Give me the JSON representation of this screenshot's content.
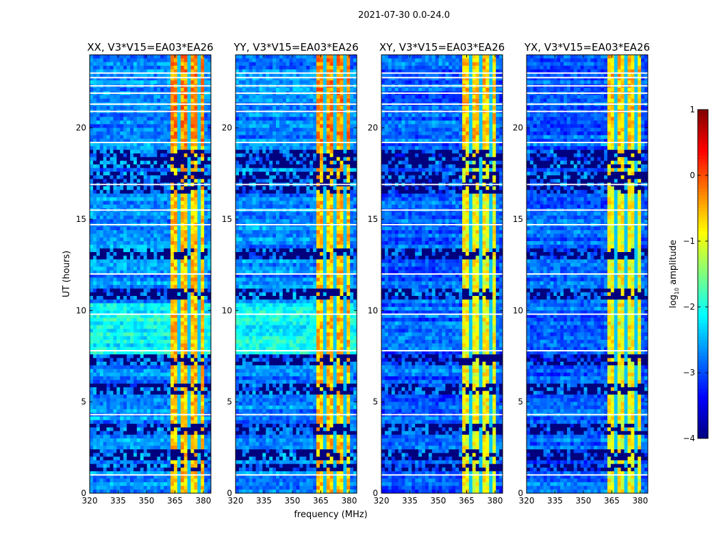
{
  "chart_data": {
    "type": "heatmap",
    "title": "2021-07-30 0.0-24.0",
    "xlabel": "frequency (MHz)",
    "ylabel": "UT (hours)",
    "xlim": [
      320,
      384
    ],
    "ylim": [
      0,
      24
    ],
    "xticks": [
      320,
      335,
      350,
      365,
      380
    ],
    "yticks": [
      0,
      5,
      10,
      15,
      20
    ],
    "panels": [
      {
        "title": "XX, V3*V15=EA03*EA26",
        "base_log_amp": -2.7,
        "band_log_amp": -0.6
      },
      {
        "title": "YY, V3*V15=EA03*EA26",
        "base_log_amp": -2.7,
        "band_log_amp": -0.6
      },
      {
        "title": "XY, V3*V15=EA03*EA26",
        "base_log_amp": -2.9,
        "band_log_amp": -0.9
      },
      {
        "title": "YX, V3*V15=EA03*EA26",
        "base_log_amp": -2.9,
        "band_log_amp": -0.9
      }
    ],
    "rfi_band_mhz": [
      363.5,
      380.5
    ],
    "band_gaps_mhz": [
      367.5,
      373.0,
      377.0
    ],
    "flagged_hours": [
      23.0,
      22.75,
      22.3,
      21.9,
      21.3,
      20.9,
      19.2,
      16.9,
      15.5,
      14.7,
      12.0,
      9.8,
      7.8,
      4.3,
      1.0
    ],
    "sparse_intervals_hours": [
      [
        17.9,
        18.8
      ],
      [
        16.5,
        17.6
      ],
      [
        12.8,
        13.4
      ],
      [
        10.6,
        11.1
      ],
      [
        7.1,
        7.6
      ],
      [
        5.5,
        6.0
      ],
      [
        3.3,
        3.8
      ],
      [
        1.8,
        2.4
      ],
      [
        1.3,
        1.6
      ]
    ],
    "colorbar": {
      "label": "log10 amplitude",
      "label_main": "log",
      "label_sub": "10",
      "label_rest": " amplitude",
      "range": [
        -4,
        1
      ],
      "ticks": [
        1,
        0,
        -1,
        -2,
        -3,
        -4
      ],
      "colormap": "jet"
    }
  }
}
